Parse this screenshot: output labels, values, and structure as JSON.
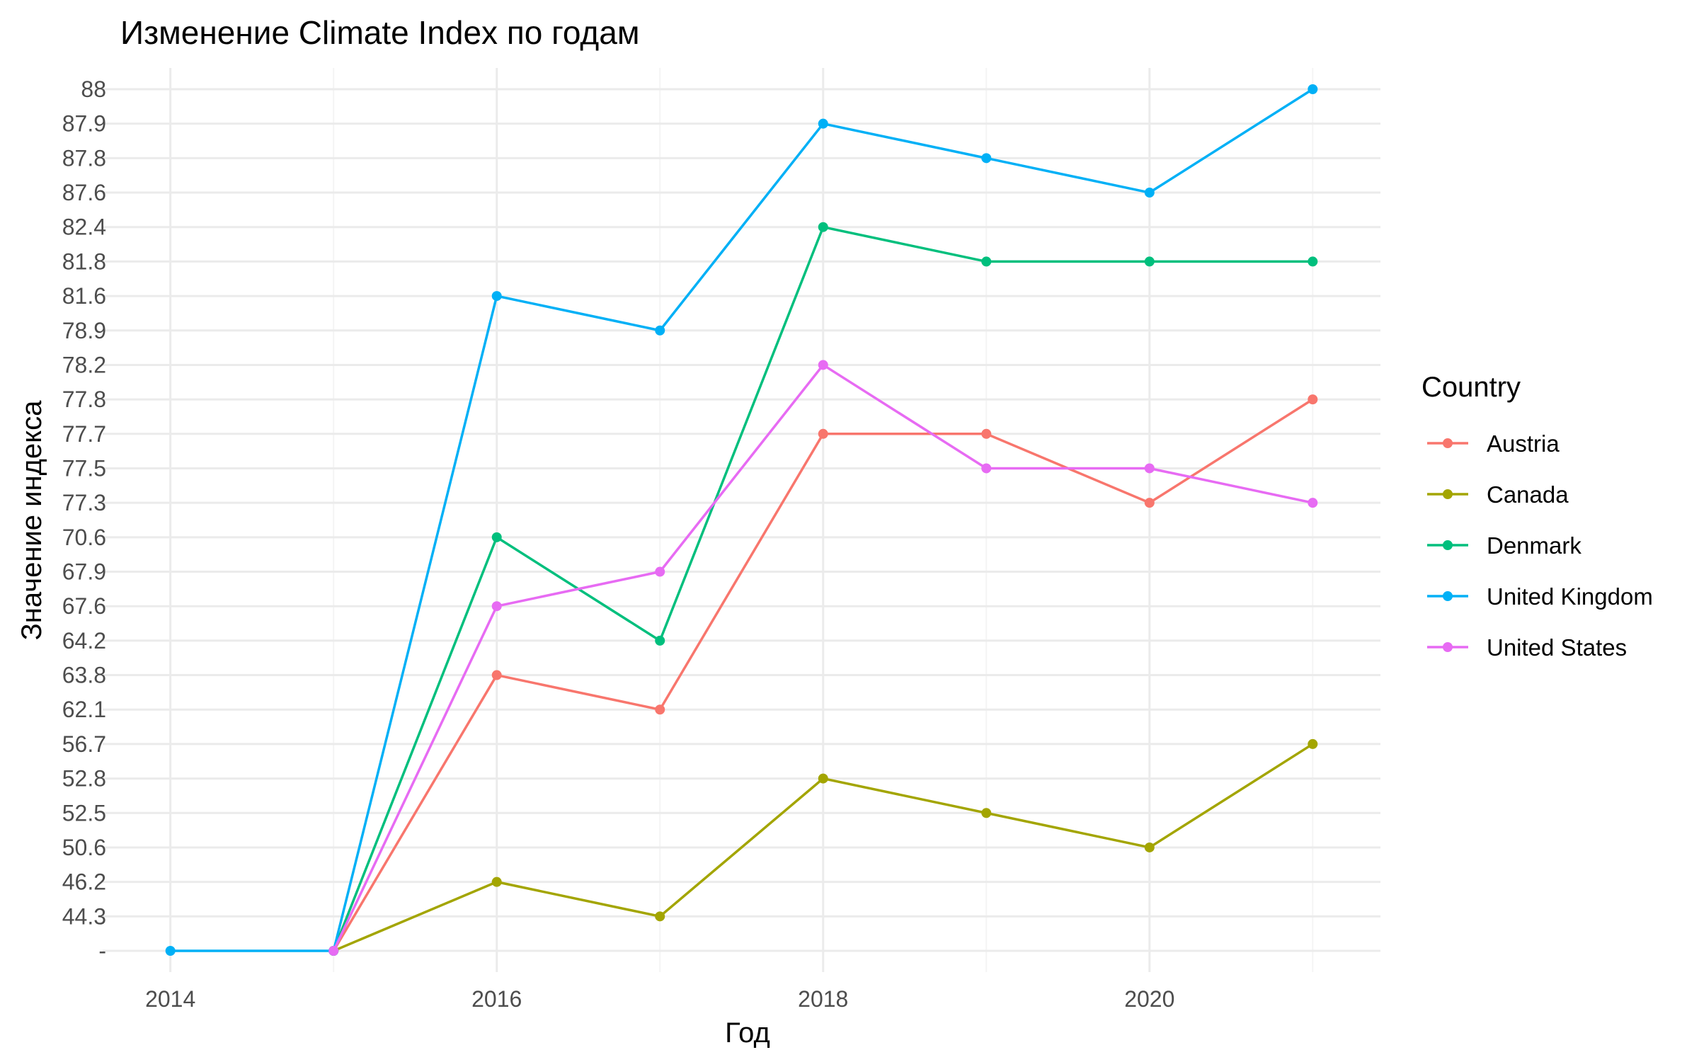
{
  "chart_data": {
    "type": "line",
    "title": "Изменение Climate Index по годам",
    "xlabel": "Год",
    "ylabel": "Значение индекса",
    "x": [
      2014,
      2015,
      2016,
      2017,
      2018,
      2019,
      2020,
      2021
    ],
    "x_ticks": [
      "2014",
      "2016",
      "2018",
      "2020"
    ],
    "y_scale": "discrete",
    "y_categories": [
      "-",
      "44.3",
      "46.2",
      "50.6",
      "52.5",
      "52.8",
      "56.7",
      "62.1",
      "63.8",
      "64.2",
      "67.6",
      "67.9",
      "70.6",
      "77.3",
      "77.5",
      "77.7",
      "77.8",
      "78.2",
      "78.9",
      "81.6",
      "81.8",
      "82.4",
      "87.6",
      "87.8",
      "87.9",
      "88"
    ],
    "grid": true,
    "legend": {
      "title": "Country",
      "position": "right"
    },
    "series": [
      {
        "name": "Austria",
        "color": "#F8766D",
        "values": [
          null,
          "-",
          "63.8",
          "62.1",
          "77.7",
          "77.7",
          "77.3",
          "77.8"
        ]
      },
      {
        "name": "Canada",
        "color": "#A3A500",
        "values": [
          null,
          "-",
          "46.2",
          "44.3",
          "52.8",
          "52.5",
          "50.6",
          "56.7"
        ]
      },
      {
        "name": "Denmark",
        "color": "#00BF7D",
        "values": [
          null,
          "-",
          "70.6",
          "64.2",
          "82.4",
          "81.8",
          "81.8",
          "81.8"
        ]
      },
      {
        "name": "United Kingdom",
        "color": "#00B0F6",
        "values": [
          "-",
          "-",
          "81.6",
          "78.9",
          "87.9",
          "87.8",
          "87.6",
          "88"
        ]
      },
      {
        "name": "United States",
        "color": "#E76BF3",
        "values": [
          null,
          "-",
          "67.6",
          "67.9",
          "78.2",
          "77.5",
          "77.5",
          "77.3"
        ]
      }
    ]
  }
}
